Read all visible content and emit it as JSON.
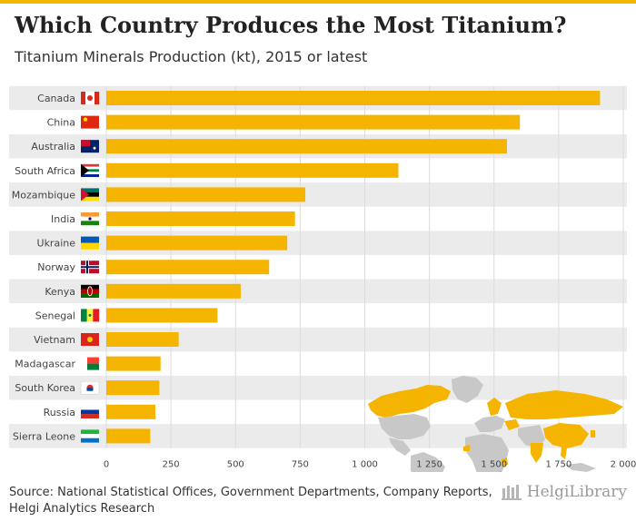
{
  "header": {
    "title": "Which Country Produces the Most Titanium?",
    "subtitle": "Titanium Minerals Production (kt), 2015 or latest"
  },
  "footer": {
    "source_line1": "Source: National Statistical Offices, Government Departments, Company Reports,",
    "source_line2": "Helgi Analytics Research",
    "logo_text": "HelgiLibrary"
  },
  "colors": {
    "bar": "#f5b400",
    "band": "#ebebeb",
    "map_highlight": "#f5b400",
    "map_other": "#c8c8c8",
    "accent": "#f5b400"
  },
  "chart_data": {
    "type": "bar",
    "orientation": "horizontal",
    "title": "Which Country Produces the Most Titanium?",
    "subtitle": "Titanium Minerals Production (kt), 2015 or latest",
    "categories": [
      "Canada",
      "China",
      "Australia",
      "South Africa",
      "Mozambique",
      "India",
      "Ukraine",
      "Norway",
      "Kenya",
      "Senegal",
      "Vietnam",
      "Madagascar",
      "South Korea",
      "Russia",
      "Sierra Leone"
    ],
    "values": [
      1910,
      1600,
      1550,
      1130,
      770,
      730,
      700,
      630,
      520,
      430,
      280,
      210,
      205,
      190,
      170
    ],
    "xlim": [
      0,
      2000
    ],
    "xticks": [
      0,
      250,
      500,
      750,
      1000,
      1250,
      1500,
      1750,
      2000
    ],
    "xtick_labels": [
      "0",
      "250",
      "500",
      "750",
      "1 000",
      "1 250",
      "1 500",
      "1 750",
      "2 000"
    ],
    "xlabel": "",
    "ylabel": "",
    "grid": true,
    "flags": [
      "canada-flag",
      "china-flag",
      "australia-flag",
      "south-africa-flag",
      "mozambique-flag",
      "india-flag",
      "ukraine-flag",
      "norway-flag",
      "kenya-flag",
      "senegal-flag",
      "vietnam-flag",
      "madagascar-flag",
      "south-korea-flag",
      "russia-flag",
      "sierra-leone-flag"
    ]
  }
}
